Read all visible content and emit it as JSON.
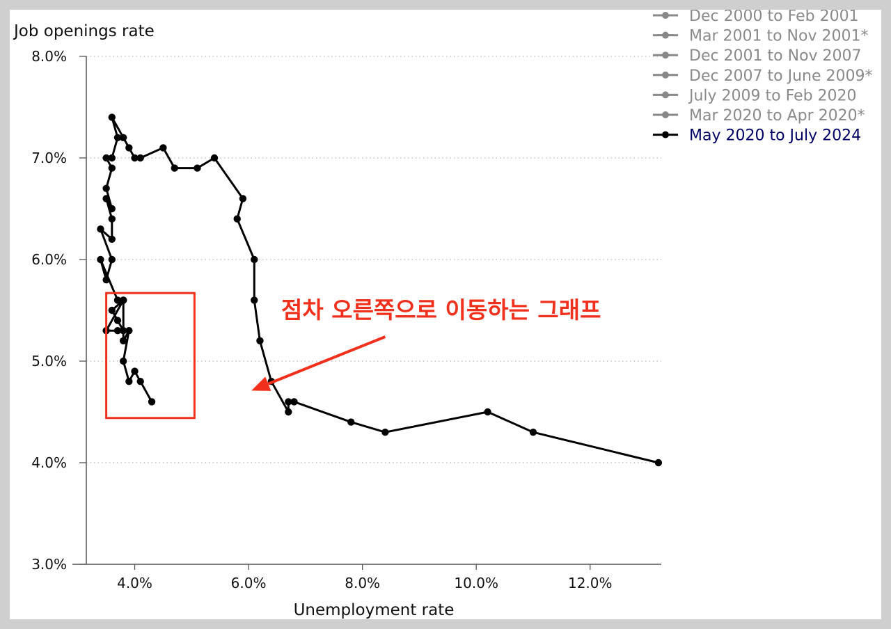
{
  "chart_data": {
    "type": "line",
    "xlabel": "Unemployment rate",
    "ylabel": "Job openings rate",
    "xlim": [
      3.15,
      13.25
    ],
    "ylim": [
      3.0,
      8.0
    ],
    "x_ticks": [
      {
        "value": 4,
        "label": "4.0%"
      },
      {
        "value": 6,
        "label": "6.0%"
      },
      {
        "value": 8,
        "label": "8.0%"
      },
      {
        "value": 10,
        "label": "10.0%"
      },
      {
        "value": 12,
        "label": "12.0%"
      }
    ],
    "y_ticks": [
      {
        "value": 3,
        "label": "3.0%"
      },
      {
        "value": 4,
        "label": "4.0%"
      },
      {
        "value": 5,
        "label": "5.0%"
      },
      {
        "value": 6,
        "label": "6.0%"
      },
      {
        "value": 7,
        "label": "7.0%"
      },
      {
        "value": 8,
        "label": "8.0%"
      }
    ],
    "grid": "horizontal dotted",
    "legend_position": "top-right",
    "legend": [
      {
        "name": "Dec 2000 to Feb 2001",
        "color": "#888888",
        "active": false
      },
      {
        "name": "Mar 2001 to Nov 2001*",
        "color": "#888888",
        "active": false
      },
      {
        "name": "Dec 2001 to Nov 2007",
        "color": "#888888",
        "active": false
      },
      {
        "name": "Dec 2007 to June 2009*",
        "color": "#888888",
        "active": false
      },
      {
        "name": "July 2009 to Feb 2020",
        "color": "#888888",
        "active": false
      },
      {
        "name": "Mar 2020 to Apr 2020*",
        "color": "#888888",
        "active": false
      },
      {
        "name": "May 2020 to July 2024",
        "color": "#000000",
        "active": true
      }
    ],
    "series": [
      {
        "name": "May 2020 to July 2024",
        "color": "#000000",
        "points": [
          [
            13.2,
            4.0
          ],
          [
            11.0,
            4.3
          ],
          [
            10.2,
            4.5
          ],
          [
            8.4,
            4.3
          ],
          [
            7.8,
            4.4
          ],
          [
            6.8,
            4.6
          ],
          [
            6.7,
            4.6
          ],
          [
            6.7,
            4.5
          ],
          [
            6.4,
            4.8
          ],
          [
            6.2,
            5.2
          ],
          [
            6.1,
            5.6
          ],
          [
            6.1,
            6.0
          ],
          [
            5.8,
            6.4
          ],
          [
            5.9,
            6.6
          ],
          [
            5.4,
            7.0
          ],
          [
            5.1,
            6.9
          ],
          [
            4.7,
            6.9
          ],
          [
            4.5,
            7.1
          ],
          [
            4.1,
            7.0
          ],
          [
            4.0,
            7.0
          ],
          [
            3.9,
            7.1
          ],
          [
            3.8,
            7.2
          ],
          [
            3.6,
            7.4
          ],
          [
            3.7,
            7.2
          ],
          [
            3.6,
            7.0
          ],
          [
            3.5,
            7.0
          ],
          [
            3.6,
            6.9
          ],
          [
            3.5,
            6.7
          ],
          [
            3.6,
            6.5
          ],
          [
            3.5,
            6.6
          ],
          [
            3.6,
            6.4
          ],
          [
            3.6,
            6.2
          ],
          [
            3.4,
            6.3
          ],
          [
            3.6,
            6.0
          ],
          [
            3.5,
            5.8
          ],
          [
            3.4,
            6.0
          ],
          [
            3.7,
            5.6
          ],
          [
            3.8,
            5.6
          ],
          [
            3.6,
            5.5
          ],
          [
            3.7,
            5.4
          ],
          [
            3.8,
            5.3
          ],
          [
            3.7,
            5.3
          ],
          [
            3.5,
            5.3
          ],
          [
            3.8,
            5.6
          ],
          [
            3.8,
            5.2
          ],
          [
            3.9,
            5.3
          ],
          [
            3.8,
            5.0
          ],
          [
            3.9,
            4.8
          ],
          [
            4.0,
            4.9
          ],
          [
            4.1,
            4.8
          ],
          [
            4.3,
            4.6
          ]
        ]
      }
    ],
    "annotation": {
      "text": "점차 오른쪽으로 이동하는 그래프",
      "color": "#f0301c",
      "box": {
        "x": [
          3.5,
          5.05
        ],
        "y": [
          4.44,
          5.67
        ]
      },
      "arrow_from": [
        8.4,
        5.24
      ],
      "arrow_to": [
        6.05,
        4.71
      ]
    }
  }
}
